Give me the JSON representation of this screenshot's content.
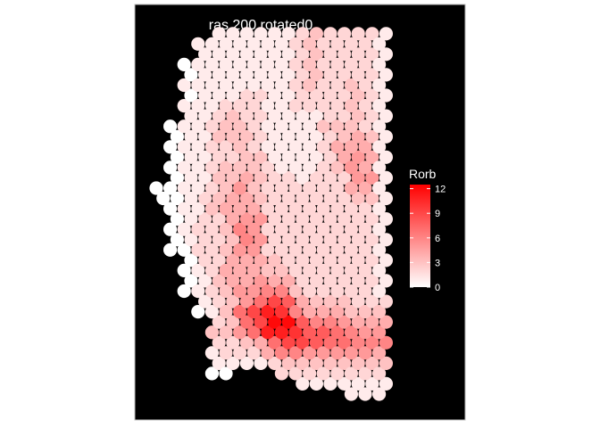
{
  "chart_data": {
    "type": "scatter",
    "title": "ras.200.rotated0",
    "background": "#000000",
    "point_shape": "circle",
    "color_scale": {
      "low": "#ffffff",
      "high": "#ff0000"
    },
    "legend": {
      "title": "Rorb",
      "placement": "right",
      "range": [
        0,
        12.5
      ],
      "ticks": [
        0,
        3,
        6,
        9,
        12
      ],
      "tick_labels": [
        "0",
        "3",
        "6",
        "9",
        "12"
      ]
    },
    "grid": false,
    "xlim": [
      0,
      17
    ],
    "ylim": [
      0,
      34
    ],
    "columns": [
      {
        "x": 0,
        "y0": 19,
        "values": [
          0,
          0
        ]
      },
      {
        "x": 1,
        "y0": 14,
        "values": [
          0,
          0,
          0,
          0,
          0,
          0,
          0,
          0,
          0,
          0,
          0,
          0,
          0
        ]
      },
      {
        "x": 2,
        "y0": 10,
        "values": [
          0,
          0,
          0,
          0,
          0,
          1,
          1,
          1,
          1,
          1,
          1,
          1,
          1,
          1,
          1,
          1,
          1,
          1,
          1,
          0,
          1,
          0,
          0
        ]
      },
      {
        "x": 3,
        "y0": 8,
        "values": [
          0,
          1,
          1,
          1,
          1,
          2,
          2,
          2,
          2,
          2,
          1,
          2,
          1,
          1,
          1,
          1,
          1,
          1,
          1,
          1,
          1,
          1,
          1,
          1,
          1,
          1,
          1
        ]
      },
      {
        "x": 4,
        "y0": 2,
        "values": [
          0,
          1,
          1,
          2,
          3,
          2,
          1,
          2,
          2,
          3,
          2,
          2,
          2,
          2,
          2,
          2,
          3,
          3,
          2,
          3,
          2,
          2,
          2,
          3,
          2,
          2,
          1,
          1,
          1,
          1,
          1,
          1,
          1,
          1
        ]
      },
      {
        "x": 5,
        "y0": 2,
        "values": [
          0,
          1,
          2,
          2,
          3,
          3,
          3,
          3,
          3,
          4,
          4,
          4,
          3,
          3,
          3,
          4,
          4,
          4,
          3,
          3,
          3,
          2,
          2,
          3,
          3,
          3,
          2,
          1,
          1,
          1,
          1,
          1,
          1,
          1
        ]
      },
      {
        "x": 6,
        "y0": 3,
        "values": [
          1,
          2,
          3,
          5,
          7,
          7,
          5,
          5,
          4,
          4,
          4,
          5,
          6,
          6,
          5,
          4,
          4,
          5,
          4,
          3,
          3,
          3,
          3,
          3,
          2,
          2,
          2,
          1,
          1,
          1,
          1,
          1,
          1
        ]
      },
      {
        "x": 7,
        "y0": 3,
        "values": [
          1,
          2,
          4,
          7,
          9,
          9,
          7,
          5,
          5,
          4,
          4,
          5,
          5,
          5,
          5,
          4,
          3,
          3,
          3,
          3,
          3,
          2,
          2,
          2,
          2,
          2,
          2,
          1,
          1,
          1,
          1,
          1,
          1
        ]
      },
      {
        "x": 8,
        "y0": 3,
        "values": [
          2,
          4,
          7,
          11,
          12,
          11,
          9,
          6,
          4,
          3,
          3,
          2,
          2,
          2,
          2,
          2,
          2,
          2,
          2,
          2,
          1,
          1,
          1,
          1,
          1,
          1,
          1,
          1,
          1,
          1,
          1,
          1,
          1
        ]
      },
      {
        "x": 9,
        "y0": 2,
        "values": [
          2,
          3,
          6,
          9,
          11,
          12,
          10,
          8,
          6,
          4,
          3,
          2,
          2,
          2,
          2,
          2,
          2,
          2,
          2,
          2,
          1,
          1,
          1,
          1,
          1,
          1,
          1,
          1,
          1,
          1,
          1,
          1,
          1,
          1
        ]
      },
      {
        "x": 10,
        "y0": 1,
        "values": [
          1,
          2,
          3,
          6,
          9,
          10,
          8,
          6,
          4,
          3,
          2,
          2,
          2,
          2,
          2,
          2,
          2,
          2,
          2,
          2,
          1,
          1,
          1,
          1,
          1,
          1,
          1,
          2,
          2,
          2,
          2,
          2,
          2,
          2,
          2
        ]
      },
      {
        "x": 11,
        "y0": 1,
        "values": [
          1,
          2,
          3,
          5,
          8,
          8,
          6,
          4,
          3,
          2,
          2,
          2,
          2,
          2,
          2,
          2,
          2,
          2,
          2,
          2,
          2,
          1,
          1,
          1,
          1,
          1,
          1,
          2,
          2,
          3,
          3,
          3,
          3,
          3,
          3
        ]
      },
      {
        "x": 12,
        "y0": 1,
        "values": [
          1,
          2,
          3,
          5,
          7,
          8,
          6,
          4,
          3,
          2,
          2,
          2,
          2,
          2,
          2,
          2,
          2,
          2,
          2,
          2,
          2,
          2,
          2,
          2,
          2,
          3,
          2,
          2,
          2,
          2,
          2,
          2,
          2,
          2,
          2
        ]
      },
      {
        "x": 13,
        "y0": 1,
        "values": [
          1,
          2,
          3,
          5,
          7,
          7,
          5,
          4,
          3,
          2,
          2,
          2,
          2,
          2,
          2,
          2,
          2,
          2,
          2,
          2,
          2,
          3,
          4,
          4,
          3,
          3,
          2,
          2,
          2,
          2,
          2,
          2,
          2,
          2,
          2
        ]
      },
      {
        "x": 14,
        "y0": 0,
        "values": [
          1,
          1,
          2,
          3,
          5,
          6,
          6,
          4,
          3,
          2,
          2,
          2,
          2,
          2,
          2,
          2,
          2,
          2,
          2,
          3,
          4,
          5,
          5,
          5,
          4,
          4,
          3,
          3,
          3,
          3,
          3,
          2,
          2,
          2,
          2,
          2
        ]
      },
      {
        "x": 15,
        "y0": 0,
        "values": [
          1,
          1,
          2,
          3,
          5,
          6,
          5,
          4,
          3,
          2,
          2,
          2,
          2,
          2,
          2,
          2,
          2,
          2,
          2,
          3,
          4,
          5,
          4,
          4,
          4,
          3,
          2,
          2,
          2,
          2,
          2,
          2,
          2,
          2,
          2,
          2
        ]
      },
      {
        "x": 16,
        "y0": 0,
        "values": [
          1,
          1,
          2,
          3,
          4,
          6,
          5,
          4,
          3,
          2,
          1,
          1,
          1,
          1,
          1,
          1,
          1,
          1,
          1,
          1,
          1,
          1,
          1,
          1,
          1,
          1,
          1,
          1,
          1,
          1,
          1,
          1,
          1,
          1,
          1,
          1
        ]
      }
    ]
  }
}
